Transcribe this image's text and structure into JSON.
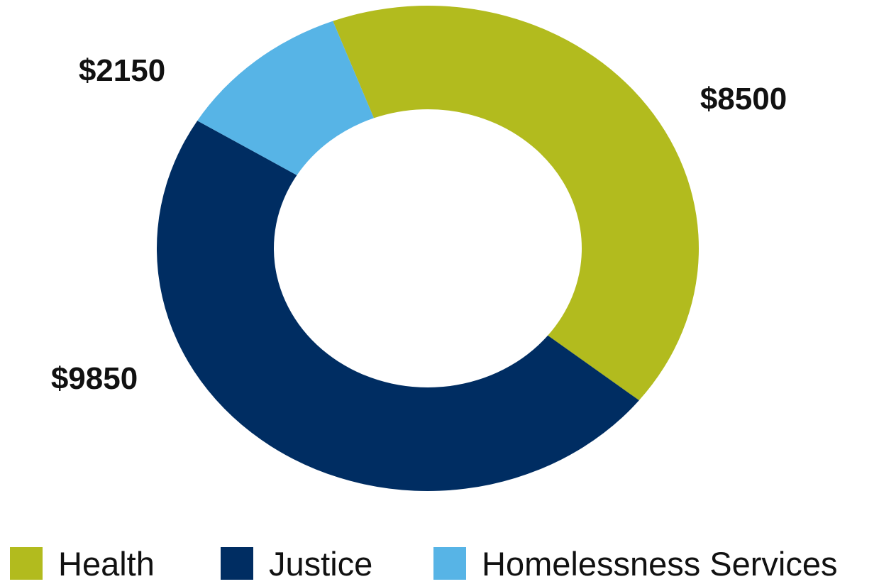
{
  "chart_data": {
    "type": "pie",
    "subtype": "donut",
    "categories": [
      "Health",
      "Justice",
      "Homelessness Services"
    ],
    "values": [
      8500,
      9850,
      2150
    ],
    "value_labels": [
      "$8500",
      "$9850",
      "$2150"
    ],
    "colors": [
      "#b2bb1e",
      "#002d62",
      "#57b4e6"
    ],
    "legend_position": "bottom",
    "title": ""
  }
}
